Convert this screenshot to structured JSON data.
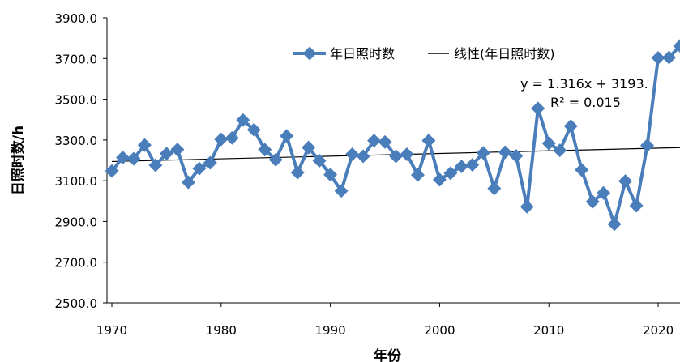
{
  "chart_data": {
    "type": "line",
    "xlabel": "年份",
    "ylabel": "日照时数/h",
    "xlim": [
      1970,
      2022
    ],
    "ylim": [
      2500,
      3900
    ],
    "x_ticks": [
      "1970",
      "1980",
      "1990",
      "2000",
      "2010",
      "2020"
    ],
    "y_ticks": [
      "2500.0",
      "2700.0",
      "2900.0",
      "3100.0",
      "3300.0",
      "3500.0",
      "3700.0",
      "3900.0"
    ],
    "legend": {
      "placement": "top-center",
      "series_label": "年日照时数",
      "trend_label": "线性(年日照时数)"
    },
    "trendline": {
      "equation": "y = 1.316x + 3193.",
      "r_squared": "R² = 0.015",
      "slope": 1.316,
      "intercept": 3193
    },
    "colors": {
      "series": "#4a7ebb",
      "trend": "#000000"
    },
    "series": [
      {
        "name": "年日照时数",
        "x": [
          1970,
          1971,
          1972,
          1973,
          1974,
          1975,
          1976,
          1977,
          1978,
          1979,
          1980,
          1981,
          1982,
          1983,
          1984,
          1985,
          1986,
          1987,
          1988,
          1989,
          1990,
          1991,
          1992,
          1993,
          1994,
          1995,
          1996,
          1997,
          1998,
          1999,
          2000,
          2001,
          2002,
          2003,
          2004,
          2005,
          2006,
          2007,
          2008,
          2009,
          2010,
          2011,
          2012,
          2013,
          2014,
          2015,
          2016,
          2017,
          2018,
          2019,
          2020,
          2021,
          2022
        ],
        "values": [
          3148,
          3214,
          3208,
          3275,
          3176,
          3233,
          3253,
          3092,
          3160,
          3188,
          3303,
          3310,
          3398,
          3350,
          3253,
          3203,
          3320,
          3140,
          3263,
          3198,
          3130,
          3050,
          3230,
          3220,
          3297,
          3290,
          3220,
          3230,
          3128,
          3297,
          3105,
          3137,
          3170,
          3178,
          3237,
          3062,
          3240,
          3222,
          2972,
          3455,
          3283,
          3249,
          3368,
          3153,
          2997,
          3040,
          2887,
          3098,
          2977,
          3273,
          3703,
          3705,
          3762
        ]
      }
    ]
  }
}
